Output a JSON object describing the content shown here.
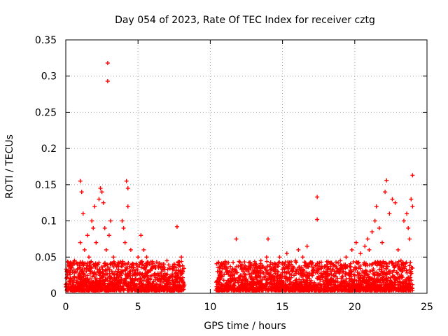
{
  "chart_data": {
    "type": "scatter",
    "title": "Day 054 of 2023, Rate Of TEC Index for receiver cztg",
    "xlabel": "GPS time / hours",
    "ylabel": "ROTI / TECUs",
    "xlim": [
      0,
      25
    ],
    "ylim": [
      0,
      0.35
    ],
    "xticks": [
      0,
      5,
      10,
      15,
      20,
      25
    ],
    "xtick_labels": [
      "0",
      "5",
      "10",
      "15",
      "20",
      "25"
    ],
    "yticks": [
      0,
      0.05,
      0.1,
      0.15,
      0.2,
      0.25,
      0.3,
      0.35
    ],
    "ytick_labels": [
      "0",
      "0.05",
      "0.1",
      "0.15",
      "0.2",
      "0.25",
      "0.3",
      "0.35"
    ],
    "grid": true,
    "marker": "+",
    "color": "#ff0000",
    "series": [
      {
        "name": "ROTI",
        "points": [
          [
            0.1,
            0.03
          ],
          [
            0.3,
            0.02
          ],
          [
            0.5,
            0.04
          ],
          [
            0.6,
            0.045
          ],
          [
            0.8,
            0.04
          ],
          [
            1.0,
            0.07
          ],
          [
            1.0,
            0.155
          ],
          [
            1.1,
            0.14
          ],
          [
            1.2,
            0.11
          ],
          [
            1.3,
            0.06
          ],
          [
            1.5,
            0.08
          ],
          [
            1.6,
            0.05
          ],
          [
            1.8,
            0.1
          ],
          [
            1.9,
            0.09
          ],
          [
            2.0,
            0.12
          ],
          [
            2.1,
            0.07
          ],
          [
            2.3,
            0.13
          ],
          [
            2.4,
            0.145
          ],
          [
            2.5,
            0.14
          ],
          [
            2.6,
            0.125
          ],
          [
            2.7,
            0.09
          ],
          [
            2.8,
            0.06
          ],
          [
            2.9,
            0.318
          ],
          [
            2.9,
            0.293
          ],
          [
            3.0,
            0.08
          ],
          [
            3.1,
            0.1
          ],
          [
            3.3,
            0.05
          ],
          [
            3.6,
            0.04
          ],
          [
            3.9,
            0.1
          ],
          [
            4.0,
            0.09
          ],
          [
            4.1,
            0.07
          ],
          [
            4.2,
            0.155
          ],
          [
            4.3,
            0.145
          ],
          [
            4.3,
            0.12
          ],
          [
            4.5,
            0.06
          ],
          [
            4.6,
            0.04
          ],
          [
            5.0,
            0.05
          ],
          [
            5.2,
            0.08
          ],
          [
            5.4,
            0.06
          ],
          [
            5.6,
            0.05
          ],
          [
            5.9,
            0.04
          ],
          [
            6.2,
            0.035
          ],
          [
            6.6,
            0.04
          ],
          [
            7.0,
            0.045
          ],
          [
            7.5,
            0.04
          ],
          [
            7.7,
            0.092
          ],
          [
            8.0,
            0.05
          ],
          [
            8.1,
            0.03
          ],
          [
            10.5,
            0.03
          ],
          [
            10.8,
            0.04
          ],
          [
            11.2,
            0.03
          ],
          [
            11.8,
            0.075
          ],
          [
            12.2,
            0.04
          ],
          [
            12.8,
            0.035
          ],
          [
            13.1,
            0.04
          ],
          [
            13.5,
            0.045
          ],
          [
            13.9,
            0.05
          ],
          [
            14.0,
            0.075
          ],
          [
            14.4,
            0.035
          ],
          [
            14.8,
            0.05
          ],
          [
            15.1,
            0.04
          ],
          [
            15.3,
            0.055
          ],
          [
            15.6,
            0.04
          ],
          [
            15.9,
            0.045
          ],
          [
            16.1,
            0.06
          ],
          [
            16.4,
            0.05
          ],
          [
            16.7,
            0.065
          ],
          [
            17.0,
            0.04
          ],
          [
            17.4,
            0.133
          ],
          [
            17.4,
            0.102
          ],
          [
            17.7,
            0.035
          ],
          [
            18.1,
            0.03
          ],
          [
            18.5,
            0.04
          ],
          [
            19.0,
            0.045
          ],
          [
            19.4,
            0.05
          ],
          [
            19.8,
            0.06
          ],
          [
            20.1,
            0.07
          ],
          [
            20.4,
            0.055
          ],
          [
            20.7,
            0.065
          ],
          [
            20.9,
            0.075
          ],
          [
            21.0,
            0.06
          ],
          [
            21.2,
            0.085
          ],
          [
            21.4,
            0.1
          ],
          [
            21.5,
            0.12
          ],
          [
            21.7,
            0.09
          ],
          [
            21.9,
            0.07
          ],
          [
            22.1,
            0.14
          ],
          [
            22.2,
            0.156
          ],
          [
            22.4,
            0.11
          ],
          [
            22.6,
            0.13
          ],
          [
            22.8,
            0.125
          ],
          [
            23.0,
            0.06
          ],
          [
            23.2,
            0.045
          ],
          [
            23.4,
            0.1
          ],
          [
            23.6,
            0.11
          ],
          [
            23.7,
            0.09
          ],
          [
            23.8,
            0.075
          ],
          [
            23.9,
            0.13
          ],
          [
            24.0,
            0.163
          ],
          [
            24.0,
            0.12
          ]
        ]
      }
    ]
  }
}
